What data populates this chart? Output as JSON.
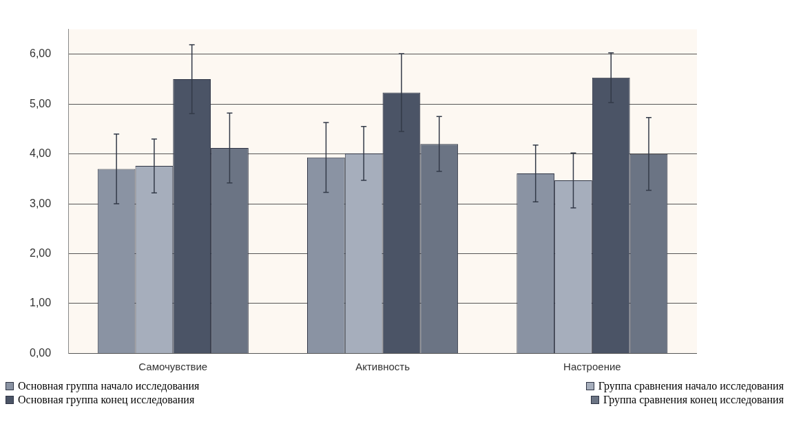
{
  "chart_data": {
    "type": "bar",
    "categories": [
      "Самочувствие",
      "Активность",
      "Настроение"
    ],
    "series": [
      {
        "name": "Основная группа начало исследования",
        "color": "#8a93a3",
        "values": [
          3.7,
          3.93,
          3.61
        ],
        "errors": [
          0.7,
          0.7,
          0.57
        ]
      },
      {
        "name": "Группа сравнения начало исследования",
        "color": "#a6aebc",
        "values": [
          3.76,
          4.01,
          3.47
        ],
        "errors": [
          0.54,
          0.54,
          0.55
        ]
      },
      {
        "name": "Основная группа конец исследования",
        "color": "#4b5466",
        "values": [
          5.5,
          5.23,
          5.53
        ],
        "errors": [
          0.69,
          0.78,
          0.5
        ]
      },
      {
        "name": "Группа сравнения конец исследования",
        "color": "#6b7484",
        "values": [
          4.12,
          4.2,
          4.0
        ],
        "errors": [
          0.7,
          0.55,
          0.73
        ]
      }
    ],
    "ylim": [
      0,
      6.5
    ],
    "yticks": [
      {
        "value": 0,
        "label": "0,00"
      },
      {
        "value": 1,
        "label": "1,00"
      },
      {
        "value": 2,
        "label": "2,00"
      },
      {
        "value": 3,
        "label": "3,00"
      },
      {
        "value": 4,
        "label": "4,00"
      },
      {
        "value": 5,
        "label": "5,00"
      },
      {
        "value": 6,
        "label": "6,00"
      }
    ],
    "grid": "y",
    "legend": "bottom"
  }
}
